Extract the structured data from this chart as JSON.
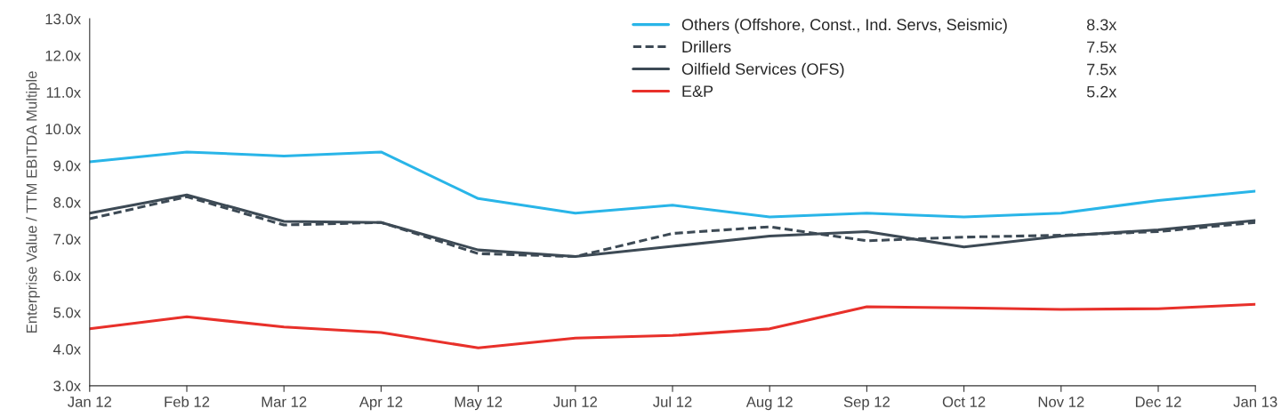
{
  "chart_data": {
    "type": "line",
    "ylabel": "Enterprise Value / TTM EBITDA Multiple",
    "categories": [
      "Jan 12",
      "Feb 12",
      "Mar 12",
      "Apr 12",
      "May 12",
      "Jun 12",
      "Jul 12",
      "Aug 12",
      "Sep 12",
      "Oct 12",
      "Nov 12",
      "Dec 12",
      "Jan 13"
    ],
    "series": [
      {
        "name": "Others (Offshore, Const., Ind. Servs, Seismic)",
        "color": "#29b5e8",
        "line_style": "solid",
        "values": [
          9.1,
          9.37,
          9.26,
          9.37,
          8.1,
          7.7,
          7.92,
          7.6,
          7.7,
          7.6,
          7.7,
          8.05,
          8.3
        ]
      },
      {
        "name": "Drillers",
        "color": "#3d4a55",
        "line_style": "dashed",
        "values": [
          7.55,
          8.15,
          7.38,
          7.45,
          6.6,
          6.52,
          7.15,
          7.33,
          6.95,
          7.05,
          7.1,
          7.2,
          7.45
        ]
      },
      {
        "name": "Oilfield Services (OFS)",
        "color": "#3d4a55",
        "line_style": "solid",
        "values": [
          7.7,
          8.2,
          7.48,
          7.45,
          6.7,
          6.52,
          6.8,
          7.08,
          7.2,
          6.78,
          7.08,
          7.25,
          7.5
        ]
      },
      {
        "name": "E&P",
        "color": "#e8302a",
        "line_style": "solid",
        "values": [
          4.55,
          4.88,
          4.6,
          4.45,
          4.03,
          4.3,
          4.37,
          4.55,
          5.15,
          5.12,
          5.08,
          5.1,
          5.22
        ]
      }
    ],
    "annotations": [
      "8.3x",
      "7.5x",
      "7.5x",
      "5.2x"
    ],
    "ylim": [
      3,
      13
    ],
    "yticks": [
      {
        "value": 3,
        "label": "3.0x"
      },
      {
        "value": 4,
        "label": "4.0x"
      },
      {
        "value": 5,
        "label": "5.0x"
      },
      {
        "value": 6,
        "label": "6.0x"
      },
      {
        "value": 7,
        "label": "7.0x"
      },
      {
        "value": 8,
        "label": "8.0x"
      },
      {
        "value": 9,
        "label": "9.0x"
      },
      {
        "value": 10,
        "label": "10.0x"
      },
      {
        "value": 11,
        "label": "11.0x"
      },
      {
        "value": 12,
        "label": "12.0x"
      },
      {
        "value": 13,
        "label": "13.0x"
      }
    ],
    "legend": "top right",
    "grid": false
  }
}
